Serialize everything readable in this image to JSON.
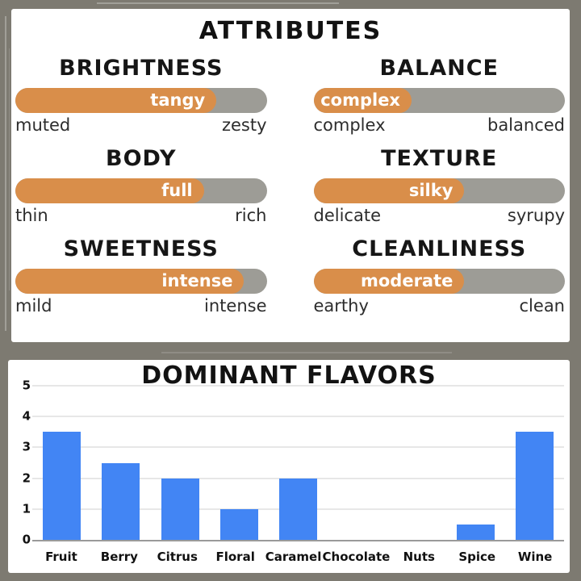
{
  "frame": {
    "color": "#7d7a71"
  },
  "attributes_panel": {
    "title": "ATTRIBUTES",
    "colors": {
      "fill": "#d98e4a",
      "track": "#9d9c96",
      "value_text": "#ffffff"
    },
    "items": [
      {
        "title": "BRIGHTNESS",
        "value_label": "tangy",
        "fill_pct": 80,
        "left_label": "muted",
        "right_label": "zesty"
      },
      {
        "title": "BALANCE",
        "value_label": "complex",
        "fill_pct": 39,
        "left_label": "complex",
        "right_label": "balanced"
      },
      {
        "title": "BODY",
        "value_label": "full",
        "fill_pct": 75,
        "left_label": "thin",
        "right_label": "rich"
      },
      {
        "title": "TEXTURE",
        "value_label": "silky",
        "fill_pct": 60,
        "left_label": "delicate",
        "right_label": "syrupy"
      },
      {
        "title": "SWEETNESS",
        "value_label": "intense",
        "fill_pct": 91,
        "left_label": "mild",
        "right_label": "intense"
      },
      {
        "title": "CLEANLINESS",
        "value_label": "moderate",
        "fill_pct": 60,
        "left_label": "earthy",
        "right_label": "clean"
      }
    ]
  },
  "chart_data": {
    "type": "bar",
    "title": "DOMINANT FLAVORS",
    "categories": [
      "Fruit",
      "Berry",
      "Citrus",
      "Floral",
      "Caramel",
      "Chocolate",
      "Nuts",
      "Spice",
      "Wine"
    ],
    "values": [
      3.5,
      2.5,
      2,
      1,
      2,
      0,
      0,
      0.5,
      3.5
    ],
    "xlabel": "",
    "ylabel": "",
    "ylim": [
      0,
      5
    ],
    "yticks": [
      0,
      1,
      2,
      3,
      4,
      5
    ],
    "grid": true,
    "legend": false,
    "bar_color": "#4285f4",
    "gridline_color": "#e7e7e7",
    "axis_color": "#9a9a9a"
  }
}
